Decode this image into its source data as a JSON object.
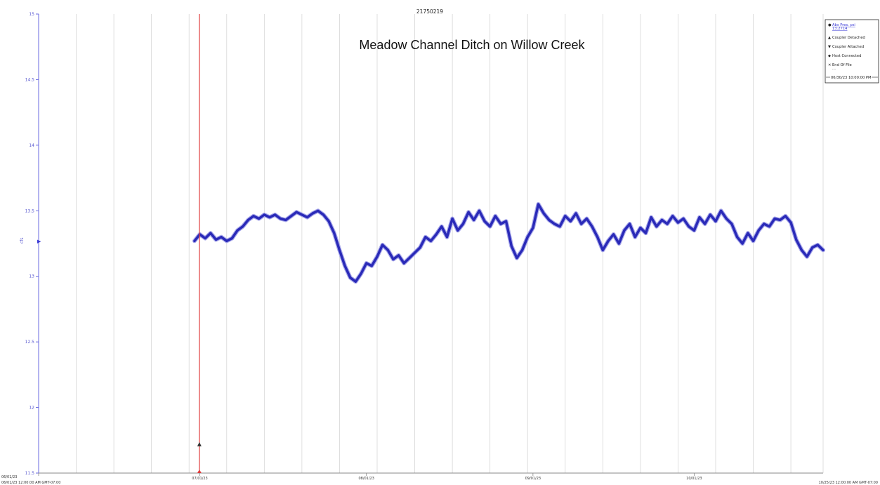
{
  "serial": "21750219",
  "chart_data": {
    "type": "line",
    "title": "Meadow Channel Ditch on Willow Creek",
    "ylabel": "cfs",
    "ylim": [
      11.5,
      15
    ],
    "yticks": [
      "15",
      "14.5",
      "14",
      "13.5",
      "13",
      "12.5",
      "12",
      "11.5"
    ],
    "xlim": [
      "06/01/23 00:00",
      "10/25/23 00:00"
    ],
    "x_start_label": "06/01/23\n06/01/23 12:00:00 AM GMT-07:00",
    "x_end_label": "10/25/23 12:00:00 AM GMT-07:00",
    "x_tick_labels": [
      {
        "date": "06/01/23",
        "label": "06/01/23"
      },
      {
        "date": "07/01/23",
        "label": "07/01/23"
      },
      {
        "date": "08/01/23",
        "label": "08/01/23"
      },
      {
        "date": "09/01/23",
        "label": "09/01/23"
      },
      {
        "date": "10/01/23",
        "label": "10/01/23"
      }
    ],
    "cursor_label": "06/30/23 10:00:00 PM",
    "events": [
      {
        "type": "Coupler Detached",
        "date": "06/30/23",
        "y": 11.72
      }
    ],
    "series": [
      {
        "name": "Abs Pres, psi",
        "color": "#2a2ab8",
        "points": [
          [
            "06/30/23",
            13.27
          ],
          [
            "07/01/23",
            13.32
          ],
          [
            "07/02/23",
            13.29
          ],
          [
            "07/03/23",
            13.33
          ],
          [
            "07/04/23",
            13.28
          ],
          [
            "07/05/23",
            13.3
          ],
          [
            "07/06/23",
            13.27
          ],
          [
            "07/07/23",
            13.29
          ],
          [
            "07/08/23",
            13.35
          ],
          [
            "07/09/23",
            13.38
          ],
          [
            "07/10/23",
            13.43
          ],
          [
            "07/11/23",
            13.46
          ],
          [
            "07/12/23",
            13.44
          ],
          [
            "07/13/23",
            13.47
          ],
          [
            "07/14/23",
            13.45
          ],
          [
            "07/15/23",
            13.47
          ],
          [
            "07/16/23",
            13.44
          ],
          [
            "07/17/23",
            13.43
          ],
          [
            "07/18/23",
            13.46
          ],
          [
            "07/19/23",
            13.49
          ],
          [
            "07/20/23",
            13.47
          ],
          [
            "07/21/23",
            13.45
          ],
          [
            "07/22/23",
            13.48
          ],
          [
            "07/23/23",
            13.5
          ],
          [
            "07/24/23",
            13.47
          ],
          [
            "07/25/23",
            13.42
          ],
          [
            "07/26/23",
            13.33
          ],
          [
            "07/27/23",
            13.2
          ],
          [
            "07/28/23",
            13.08
          ],
          [
            "07/29/23",
            12.99
          ],
          [
            "07/30/23",
            12.96
          ],
          [
            "07/31/23",
            13.02
          ],
          [
            "08/01/23",
            13.1
          ],
          [
            "08/02/23",
            13.08
          ],
          [
            "08/03/23",
            13.15
          ],
          [
            "08/04/23",
            13.24
          ],
          [
            "08/05/23",
            13.2
          ],
          [
            "08/06/23",
            13.13
          ],
          [
            "08/07/23",
            13.16
          ],
          [
            "08/08/23",
            13.1
          ],
          [
            "08/09/23",
            13.14
          ],
          [
            "08/10/23",
            13.18
          ],
          [
            "08/11/23",
            13.22
          ],
          [
            "08/12/23",
            13.3
          ],
          [
            "08/13/23",
            13.27
          ],
          [
            "08/14/23",
            13.32
          ],
          [
            "08/15/23",
            13.38
          ],
          [
            "08/16/23",
            13.3
          ],
          [
            "08/17/23",
            13.44
          ],
          [
            "08/18/23",
            13.35
          ],
          [
            "08/19/23",
            13.4
          ],
          [
            "08/20/23",
            13.49
          ],
          [
            "08/21/23",
            13.43
          ],
          [
            "08/22/23",
            13.5
          ],
          [
            "08/23/23",
            13.42
          ],
          [
            "08/24/23",
            13.38
          ],
          [
            "08/25/23",
            13.46
          ],
          [
            "08/26/23",
            13.4
          ],
          [
            "08/27/23",
            13.42
          ],
          [
            "08/28/23",
            13.23
          ],
          [
            "08/29/23",
            13.14
          ],
          [
            "08/30/23",
            13.2
          ],
          [
            "08/31/23",
            13.3
          ],
          [
            "09/01/23",
            13.37
          ],
          [
            "09/02/23",
            13.55
          ],
          [
            "09/03/23",
            13.48
          ],
          [
            "09/04/23",
            13.43
          ],
          [
            "09/05/23",
            13.4
          ],
          [
            "09/06/23",
            13.38
          ],
          [
            "09/07/23",
            13.46
          ],
          [
            "09/08/23",
            13.42
          ],
          [
            "09/09/23",
            13.48
          ],
          [
            "09/10/23",
            13.4
          ],
          [
            "09/11/23",
            13.44
          ],
          [
            "09/12/23",
            13.38
          ],
          [
            "09/13/23",
            13.3
          ],
          [
            "09/14/23",
            13.2
          ],
          [
            "09/15/23",
            13.27
          ],
          [
            "09/16/23",
            13.32
          ],
          [
            "09/17/23",
            13.25
          ],
          [
            "09/18/23",
            13.35
          ],
          [
            "09/19/23",
            13.4
          ],
          [
            "09/20/23",
            13.3
          ],
          [
            "09/21/23",
            13.37
          ],
          [
            "09/22/23",
            13.33
          ],
          [
            "09/23/23",
            13.45
          ],
          [
            "09/24/23",
            13.38
          ],
          [
            "09/25/23",
            13.43
          ],
          [
            "09/26/23",
            13.4
          ],
          [
            "09/27/23",
            13.46
          ],
          [
            "09/28/23",
            13.41
          ],
          [
            "09/29/23",
            13.44
          ],
          [
            "09/30/23",
            13.38
          ],
          [
            "10/01/23",
            13.35
          ],
          [
            "10/02/23",
            13.45
          ],
          [
            "10/03/23",
            13.4
          ],
          [
            "10/04/23",
            13.47
          ],
          [
            "10/05/23",
            13.42
          ],
          [
            "10/06/23",
            13.5
          ],
          [
            "10/07/23",
            13.44
          ],
          [
            "10/08/23",
            13.4
          ],
          [
            "10/09/23",
            13.3
          ],
          [
            "10/10/23",
            13.25
          ],
          [
            "10/11/23",
            13.33
          ],
          [
            "10/12/23",
            13.27
          ],
          [
            "10/13/23",
            13.35
          ],
          [
            "10/14/23",
            13.4
          ],
          [
            "10/15/23",
            13.38
          ],
          [
            "10/16/23",
            13.44
          ],
          [
            "10/17/23",
            13.43
          ],
          [
            "10/18/23",
            13.46
          ],
          [
            "10/19/23",
            13.41
          ],
          [
            "10/20/23",
            13.28
          ],
          [
            "10/21/23",
            13.2
          ],
          [
            "10/22/23",
            13.15
          ],
          [
            "10/23/23",
            13.22
          ],
          [
            "10/24/23",
            13.24
          ],
          [
            "10/25/23",
            13.2
          ]
        ]
      }
    ],
    "legend": {
      "placement": "top-right",
      "entries": [
        {
          "symbol": "●",
          "label": "Abs Pres, psi",
          "value": "13.2714",
          "link": true
        },
        {
          "symbol": "▲",
          "label": "Coupler Detached",
          "value": "",
          "link": false
        },
        {
          "symbol": "▼",
          "label": "Coupler Attached",
          "value": "",
          "link": false
        },
        {
          "symbol": "◆",
          "label": "Host Connected",
          "value": "",
          "link": false
        },
        {
          "symbol": "✕",
          "label": "End Of File",
          "value": "...",
          "link": false
        }
      ]
    },
    "grid": true
  }
}
